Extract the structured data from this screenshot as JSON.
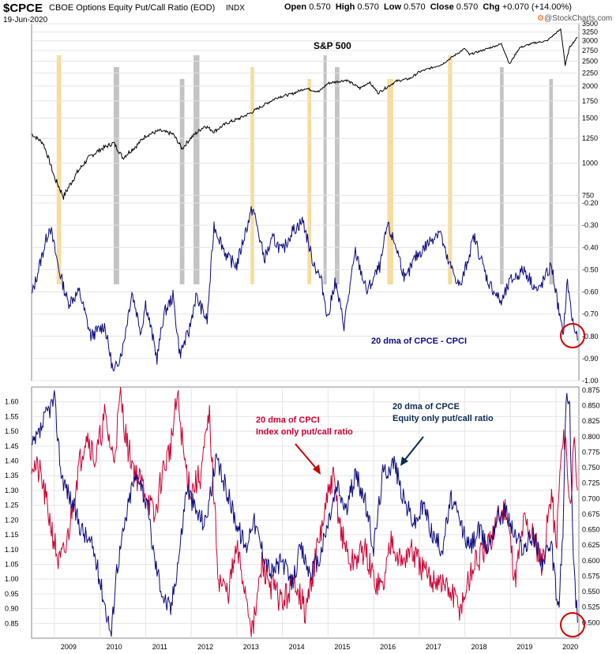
{
  "header": {
    "symbol": "$CPCE",
    "description": "CBOE Options Equity Put/Call Ratio (EOD)",
    "exchange": "INDX",
    "date": "19-Jun-2020",
    "open_label": "Open",
    "open": "0.570",
    "high_label": "High",
    "high": "0.570",
    "low_label": "Low",
    "low": "0.570",
    "close_label": "Close",
    "close": "0.570",
    "chg_label": "Chg",
    "chg": "+0.070 (+14.00%)",
    "brand": "@StockCharts.com",
    "brand_icon": "stockcharts-logo-icon"
  },
  "colors": {
    "spx": "#000000",
    "diff": "#0a0a80",
    "cpce": "#0a0a80",
    "cpci": "#cc0033",
    "highlight_orange": "#f5d68c",
    "highlight_gray": "#b8b8b8",
    "circle": "#d40000",
    "grid": "#e4e4e4",
    "arrow_red": "#cc0000",
    "arrow_navy": "#0a2a50"
  },
  "chart_data": [
    {
      "type": "line",
      "title": "S&P 500",
      "scale": "log",
      "y_ticks": [
        750,
        1000,
        1250,
        1500,
        1750,
        2000,
        2250,
        2500,
        2750,
        3000,
        3250,
        3500
      ],
      "ylim": [
        700,
        3500
      ],
      "x": [
        2008.5,
        2008.75,
        2009.0,
        2009.2,
        2009.5,
        2009.75,
        2010.0,
        2010.3,
        2010.5,
        2010.8,
        2011.0,
        2011.3,
        2011.6,
        2011.8,
        2012.0,
        2012.3,
        2012.5,
        2012.8,
        2013.0,
        2013.3,
        2013.6,
        2013.9,
        2014.2,
        2014.5,
        2014.8,
        2015.0,
        2015.4,
        2015.7,
        2015.9,
        2016.1,
        2016.5,
        2016.8,
        2017.0,
        2017.5,
        2018.0,
        2018.1,
        2018.5,
        2018.8,
        2018.98,
        2019.2,
        2019.5,
        2019.8,
        2020.1,
        2020.2,
        2020.3,
        2020.47
      ],
      "values": [
        1300,
        1200,
        880,
        740,
        920,
        1050,
        1130,
        1200,
        1050,
        1170,
        1280,
        1340,
        1300,
        1140,
        1260,
        1400,
        1330,
        1440,
        1480,
        1570,
        1690,
        1810,
        1860,
        1960,
        1900,
        2050,
        2110,
        1960,
        2070,
        1880,
        2090,
        2140,
        2270,
        2430,
        2800,
        2650,
        2800,
        2920,
        2430,
        2820,
        2940,
        3000,
        3330,
        2400,
        2840,
        3100
      ]
    },
    {
      "type": "line",
      "title": "20 dma of CPCE - CPCI",
      "ylim": [
        -1.0,
        -0.2
      ],
      "y_ticks": [
        -0.2,
        -0.3,
        -0.4,
        -0.5,
        -0.6,
        -0.7,
        -0.8,
        -0.9,
        -1.0
      ],
      "y_tick_labels": [
        "-0.20",
        "-0.30",
        "-0.40",
        "-0.50",
        "-0.60",
        "-0.70",
        "-0.80",
        "-0.90",
        "-1.00"
      ],
      "x": [
        2008.5,
        2008.75,
        2008.9,
        2009.1,
        2009.3,
        2009.55,
        2009.8,
        2010.1,
        2010.3,
        2010.5,
        2010.7,
        2010.9,
        2011.0,
        2011.25,
        2011.4,
        2011.6,
        2011.75,
        2011.95,
        2012.1,
        2012.35,
        2012.5,
        2012.8,
        2013.0,
        2013.2,
        2013.35,
        2013.6,
        2013.8,
        2014.0,
        2014.2,
        2014.45,
        2014.65,
        2014.85,
        2015.0,
        2015.15,
        2015.35,
        2015.6,
        2015.85,
        2016.15,
        2016.3,
        2016.5,
        2016.7,
        2016.9,
        2017.2,
        2017.45,
        2017.6,
        2017.9,
        2018.2,
        2018.5,
        2018.8,
        2019.0,
        2019.3,
        2019.6,
        2019.9,
        2020.15,
        2020.25,
        2020.35,
        2020.47
      ],
      "values": [
        -0.62,
        -0.42,
        -0.3,
        -0.5,
        -0.65,
        -0.6,
        -0.8,
        -0.75,
        -0.97,
        -0.85,
        -0.6,
        -0.78,
        -0.65,
        -0.9,
        -0.7,
        -0.62,
        -0.88,
        -0.78,
        -0.62,
        -0.73,
        -0.3,
        -0.45,
        -0.48,
        -0.32,
        -0.22,
        -0.45,
        -0.36,
        -0.42,
        -0.33,
        -0.28,
        -0.45,
        -0.55,
        -0.72,
        -0.55,
        -0.75,
        -0.42,
        -0.6,
        -0.48,
        -0.3,
        -0.4,
        -0.55,
        -0.45,
        -0.38,
        -0.32,
        -0.45,
        -0.58,
        -0.35,
        -0.55,
        -0.65,
        -0.55,
        -0.5,
        -0.6,
        -0.48,
        -0.8,
        -0.55,
        -0.72,
        -0.82
      ]
    },
    {
      "type": "line",
      "annotations": [
        "20 dma of CPCI",
        "Index only put/call ratio",
        "20 dma of CPCE",
        "Equity only put/call ratio"
      ],
      "x_ticks": [
        "2009",
        "2010",
        "2011",
        "2012",
        "2013",
        "2014",
        "2015",
        "2016",
        "2017",
        "2018",
        "2019",
        "2020"
      ],
      "left_y_ticks": [
        0.85,
        0.9,
        0.95,
        1.0,
        1.05,
        1.1,
        1.15,
        1.2,
        1.25,
        1.3,
        1.35,
        1.4,
        1.45,
        1.5,
        1.55,
        1.6
      ],
      "left_ylim": [
        0.8,
        1.65
      ],
      "right_y_ticks": [
        0.5,
        0.525,
        0.55,
        0.575,
        0.6,
        0.625,
        0.65,
        0.675,
        0.7,
        0.725,
        0.75,
        0.775,
        0.8,
        0.825,
        0.85,
        0.875
      ],
      "right_ylim": [
        0.475,
        0.88
      ],
      "series": [
        {
          "axis": "left",
          "x": [
            2008.5,
            2008.7,
            2008.9,
            2009.1,
            2009.25,
            2009.5,
            2009.7,
            2009.9,
            2010.1,
            2010.3,
            2010.45,
            2010.6,
            2010.8,
            2011.0,
            2011.2,
            2011.35,
            2011.55,
            2011.7,
            2011.85,
            2012.0,
            2012.2,
            2012.4,
            2012.6,
            2012.8,
            2013.0,
            2013.2,
            2013.35,
            2013.55,
            2013.75,
            2014.0,
            2014.3,
            2014.5,
            2014.7,
            2014.9,
            2015.1,
            2015.3,
            2015.5,
            2015.8,
            2016.0,
            2016.2,
            2016.4,
            2016.6,
            2016.8,
            2017.0,
            2017.2,
            2017.4,
            2017.7,
            2017.9,
            2018.2,
            2018.5,
            2018.7,
            2018.9,
            2019.1,
            2019.3,
            2019.5,
            2019.7,
            2019.9,
            2020.0,
            2020.1,
            2020.2,
            2020.3,
            2020.4,
            2020.47
          ],
          "values": [
            1.4,
            1.35,
            1.2,
            1.05,
            1.1,
            1.35,
            1.5,
            1.4,
            1.55,
            1.4,
            1.62,
            1.45,
            1.35,
            1.3,
            1.2,
            1.35,
            1.45,
            1.62,
            1.4,
            1.3,
            1.35,
            1.55,
            1.0,
            0.95,
            1.1,
            0.95,
            0.82,
            1.05,
            0.98,
            0.92,
            1.0,
            0.88,
            1.05,
            1.2,
            1.35,
            1.15,
            1.05,
            1.1,
            1.0,
            0.97,
            1.15,
            1.05,
            1.1,
            1.05,
            1.0,
            1.0,
            0.95,
            0.9,
            1.05,
            1.1,
            1.2,
            1.25,
            1.0,
            1.2,
            1.15,
            1.05,
            1.3,
            1.1,
            1.4,
            1.5,
            1.25,
            1.45,
            1.3
          ]
        },
        {
          "axis": "right",
          "x": [
            2008.5,
            2008.65,
            2008.85,
            2009.0,
            2009.15,
            2009.35,
            2009.6,
            2009.85,
            2010.05,
            2010.25,
            2010.35,
            2010.55,
            2010.7,
            2010.85,
            2011.05,
            2011.2,
            2011.4,
            2011.55,
            2011.75,
            2011.9,
            2012.1,
            2012.3,
            2012.55,
            2012.75,
            2013.0,
            2013.2,
            2013.35,
            2013.55,
            2013.75,
            2014.0,
            2014.2,
            2014.4,
            2014.6,
            2014.8,
            2015.0,
            2015.2,
            2015.4,
            2015.6,
            2015.8,
            2016.0,
            2016.2,
            2016.45,
            2016.65,
            2016.9,
            2017.1,
            2017.3,
            2017.5,
            2017.7,
            2017.9,
            2018.1,
            2018.3,
            2018.5,
            2018.7,
            2018.9,
            2019.1,
            2019.3,
            2019.5,
            2019.7,
            2019.9,
            2020.05,
            2020.15,
            2020.22,
            2020.3,
            2020.38,
            2020.47
          ],
          "values": [
            0.78,
            0.8,
            0.84,
            0.86,
            0.74,
            0.7,
            0.65,
            0.62,
            0.55,
            0.48,
            0.58,
            0.66,
            0.72,
            0.74,
            0.68,
            0.6,
            0.54,
            0.52,
            0.62,
            0.72,
            0.68,
            0.66,
            0.76,
            0.72,
            0.66,
            0.62,
            0.67,
            0.62,
            0.58,
            0.6,
            0.56,
            0.62,
            0.58,
            0.6,
            0.66,
            0.72,
            0.68,
            0.74,
            0.7,
            0.62,
            0.74,
            0.76,
            0.7,
            0.66,
            0.69,
            0.64,
            0.62,
            0.7,
            0.66,
            0.62,
            0.65,
            0.62,
            0.67,
            0.68,
            0.64,
            0.62,
            0.64,
            0.6,
            0.62,
            0.52,
            0.64,
            0.87,
            0.84,
            0.6,
            0.5
          ]
        }
      ]
    }
  ]
}
